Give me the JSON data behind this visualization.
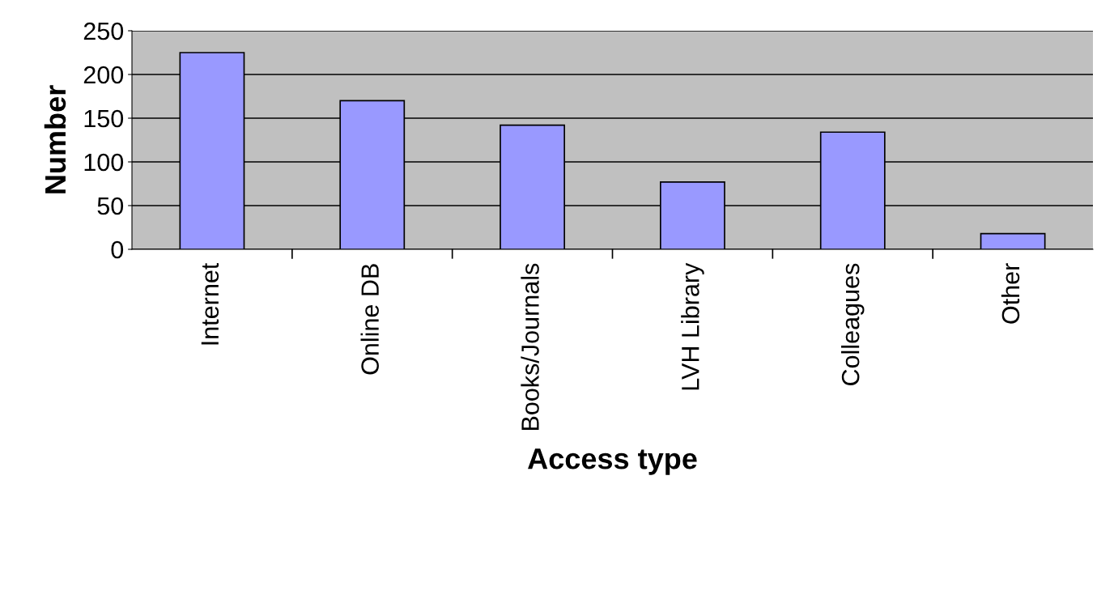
{
  "chart_data": {
    "type": "bar",
    "xlabel": "Access type",
    "ylabel": "Number",
    "categories": [
      "Internet",
      "Online DB",
      "Books/Journals",
      "LVH Library",
      "Colleagues",
      "Other"
    ],
    "values": [
      225,
      170,
      142,
      77,
      134,
      18
    ],
    "color": "#9999ff",
    "ylim": [
      0,
      250
    ],
    "yticks": [
      0,
      50,
      100,
      150,
      200,
      250
    ],
    "grid": "y"
  }
}
